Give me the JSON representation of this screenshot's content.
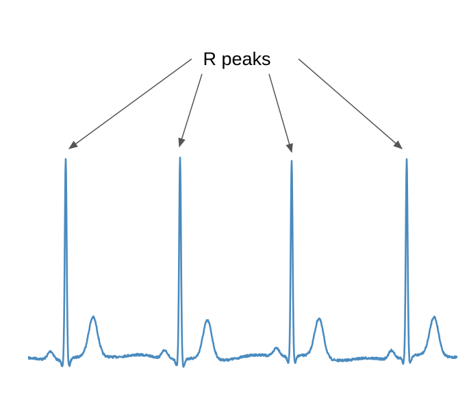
{
  "annotation": {
    "label": "R peaks"
  },
  "colors": {
    "signal": "#4a8bbf",
    "arrow": "#555555",
    "background": "#ffffff"
  },
  "diagram": {
    "type": "ecg-trace",
    "peak_count": 4
  }
}
